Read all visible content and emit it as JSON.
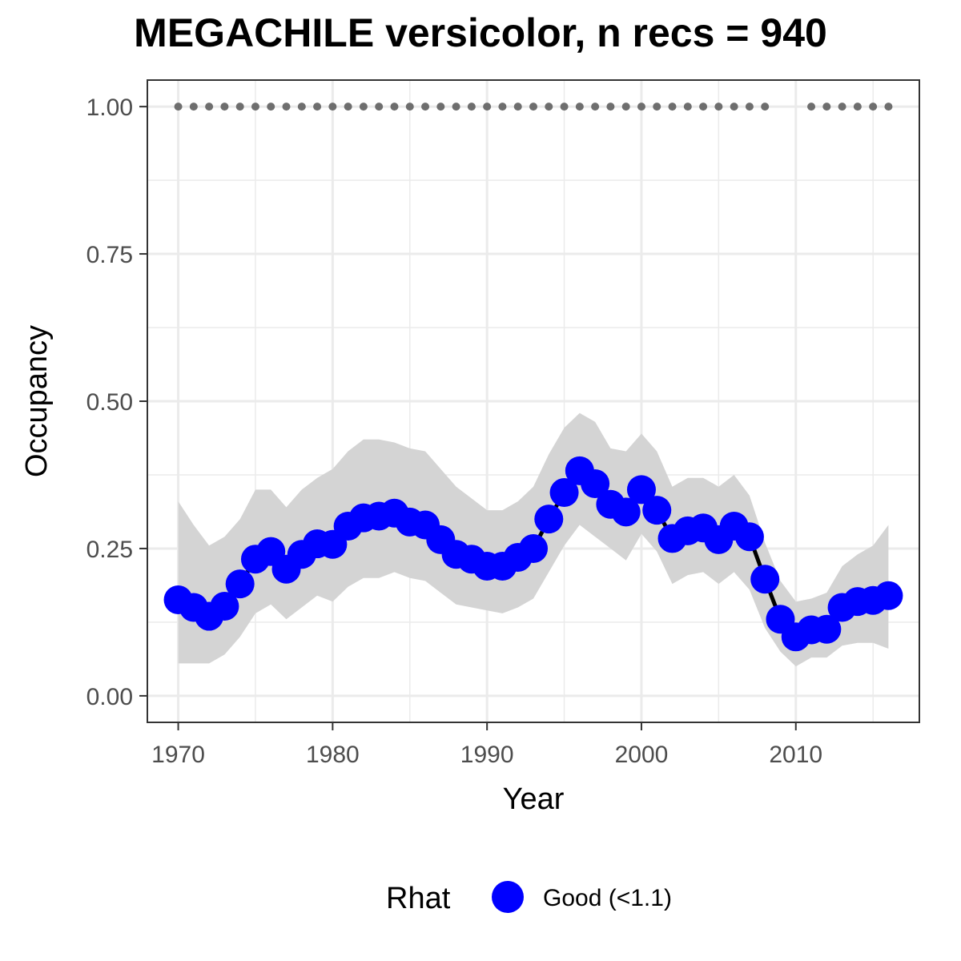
{
  "chart_data": {
    "type": "line",
    "title": "MEGACHILE versicolor, n recs = 940",
    "xlabel": "Year",
    "ylabel": "Occupancy",
    "xlim": [
      1968,
      2018
    ],
    "ylim": [
      -0.045,
      1.045
    ],
    "x_ticks": [
      1970,
      1980,
      1990,
      2000,
      2010
    ],
    "x_tick_labels": [
      "1970",
      "1980",
      "1990",
      "2000",
      "2010"
    ],
    "y_ticks": [
      0,
      0.25,
      0.5,
      0.75,
      1.0
    ],
    "y_tick_labels": [
      "0.00",
      "0.25",
      "0.50",
      "0.75",
      "1.00"
    ],
    "grid": true,
    "legend": {
      "title": "Rhat",
      "position": "bottom",
      "entries": [
        {
          "label": "Good (<1.1)",
          "color": "#0000ff"
        }
      ]
    },
    "series": [
      {
        "x": [
          1970,
          1971,
          1972,
          1973,
          1974,
          1975,
          1976,
          1977,
          1978,
          1979,
          1980,
          1981,
          1982,
          1983,
          1984,
          1985,
          1986,
          1987,
          1988,
          1989,
          1990,
          1991,
          1992,
          1993,
          1994,
          1995,
          1996,
          1997,
          1998,
          1999,
          2000,
          2001,
          2002,
          2003,
          2004,
          2005,
          2006,
          2007,
          2008,
          2009,
          2010,
          2011,
          2012,
          2013,
          2014,
          2015,
          2016
        ],
        "values": [
          0.163,
          0.15,
          0.135,
          0.152,
          0.19,
          0.232,
          0.245,
          0.215,
          0.24,
          0.258,
          0.257,
          0.288,
          0.302,
          0.305,
          0.31,
          0.295,
          0.29,
          0.265,
          0.24,
          0.232,
          0.22,
          0.22,
          0.235,
          0.25,
          0.3,
          0.345,
          0.382,
          0.36,
          0.325,
          0.312,
          0.35,
          0.315,
          0.267,
          0.28,
          0.285,
          0.265,
          0.288,
          0.27,
          0.198,
          0.13,
          0.1,
          0.112,
          0.113,
          0.15,
          0.16,
          0.162,
          0.17
        ],
        "lower": [
          0.055,
          0.055,
          0.055,
          0.07,
          0.1,
          0.14,
          0.155,
          0.13,
          0.15,
          0.17,
          0.16,
          0.185,
          0.2,
          0.2,
          0.21,
          0.2,
          0.195,
          0.175,
          0.155,
          0.15,
          0.145,
          0.14,
          0.15,
          0.165,
          0.21,
          0.255,
          0.29,
          0.27,
          0.25,
          0.23,
          0.275,
          0.245,
          0.19,
          0.205,
          0.21,
          0.19,
          0.21,
          0.18,
          0.115,
          0.075,
          0.05,
          0.065,
          0.065,
          0.085,
          0.09,
          0.09,
          0.08
        ],
        "upper": [
          0.33,
          0.29,
          0.255,
          0.27,
          0.3,
          0.35,
          0.35,
          0.32,
          0.35,
          0.37,
          0.385,
          0.415,
          0.435,
          0.435,
          0.43,
          0.42,
          0.415,
          0.385,
          0.355,
          0.335,
          0.315,
          0.315,
          0.33,
          0.355,
          0.41,
          0.455,
          0.48,
          0.465,
          0.42,
          0.415,
          0.445,
          0.415,
          0.355,
          0.37,
          0.37,
          0.355,
          0.375,
          0.34,
          0.26,
          0.195,
          0.16,
          0.165,
          0.175,
          0.22,
          0.24,
          0.255,
          0.29
        ],
        "rhat": "Good (<1.1)",
        "color": "#0000ff"
      }
    ],
    "records_years": [
      1970,
      1971,
      1972,
      1973,
      1974,
      1975,
      1976,
      1977,
      1978,
      1979,
      1980,
      1981,
      1982,
      1983,
      1984,
      1985,
      1986,
      1987,
      1988,
      1989,
      1990,
      1991,
      1992,
      1993,
      1994,
      1995,
      1996,
      1997,
      1998,
      1999,
      2000,
      2001,
      2002,
      2003,
      2004,
      2005,
      2006,
      2007,
      2008,
      2011,
      2012,
      2013,
      2014,
      2015,
      2016
    ],
    "records_value": 1.0,
    "ribbon_color": "#d4d4d4",
    "record_dot_color": "#6e6e6e"
  }
}
